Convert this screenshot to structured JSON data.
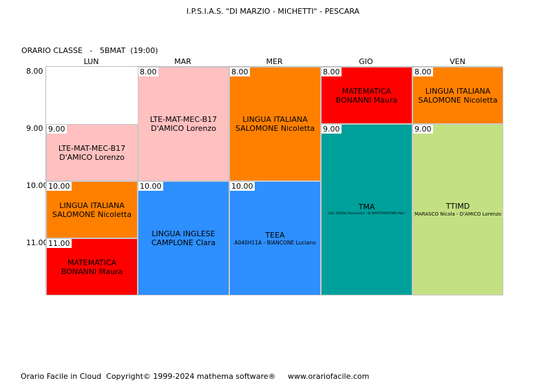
{
  "header": {
    "school": "I.P.S.I.A.S. \"DI MARZIO - MICHETTI\" - PESCARA",
    "class_line": "ORARIO CLASSE   -   5BMAT  (19:00)"
  },
  "days": [
    "LUN",
    "MAR",
    "MER",
    "GIO",
    "VEN"
  ],
  "hours": [
    "8.00",
    "9.00",
    "10.00",
    "11.00"
  ],
  "colors": {
    "pink": "#FFC0C0",
    "orange": "#FF8000",
    "red": "#FF0000",
    "blue": "#2E8FFF",
    "teal": "#00A09A",
    "green": "#C3E082"
  },
  "lessons": {
    "lun_9": {
      "time": "9.00",
      "subject": "LTE-MAT-MEC-B17",
      "teacher": "D'AMICO Lorenzo"
    },
    "lun_10": {
      "time": "10.00",
      "subject": "LINGUA ITALIANA",
      "teacher": "SALOMONE Nicoletta"
    },
    "lun_11": {
      "time": "11.00",
      "subject": "MATEMATICA",
      "teacher": "BONANNI Maura"
    },
    "mar_8": {
      "time": "8.00",
      "subject": "LTE-MAT-MEC-B17",
      "teacher": "D'AMICO Lorenzo"
    },
    "mar_10": {
      "time": "10.00",
      "subject": "LINGUA INGLESE",
      "teacher": "CAMPLONE Clara"
    },
    "mer_8": {
      "time": "8.00",
      "subject": "LINGUA ITALIANA",
      "teacher": "SALOMONE Nicoletta"
    },
    "mer_10": {
      "time": "10.00",
      "subject": "TEEA",
      "teacher": "A040H11A - BIANCONE Luciano"
    },
    "gio_8": {
      "time": "8.00",
      "subject": "MATEMATICA",
      "teacher": "BONANNI Maura"
    },
    "gio_9": {
      "time": "9.00",
      "subject": "TMA",
      "teacher": "DEL ROSSO Alessandro - DI MASTRANTONIO Mari"
    },
    "ven_8": {
      "time": "8.00",
      "subject": "LINGUA ITALIANA",
      "teacher": "SALOMONE Nicoletta"
    },
    "ven_9": {
      "time": "9.00",
      "subject": "TTIMD",
      "teacher": "MARASCO Nicola - D'AMICO Lorenzo"
    }
  },
  "footer": "Orario Facile in Cloud  Copyright© 1999-2024 mathema software®     www.orariofacile.com"
}
